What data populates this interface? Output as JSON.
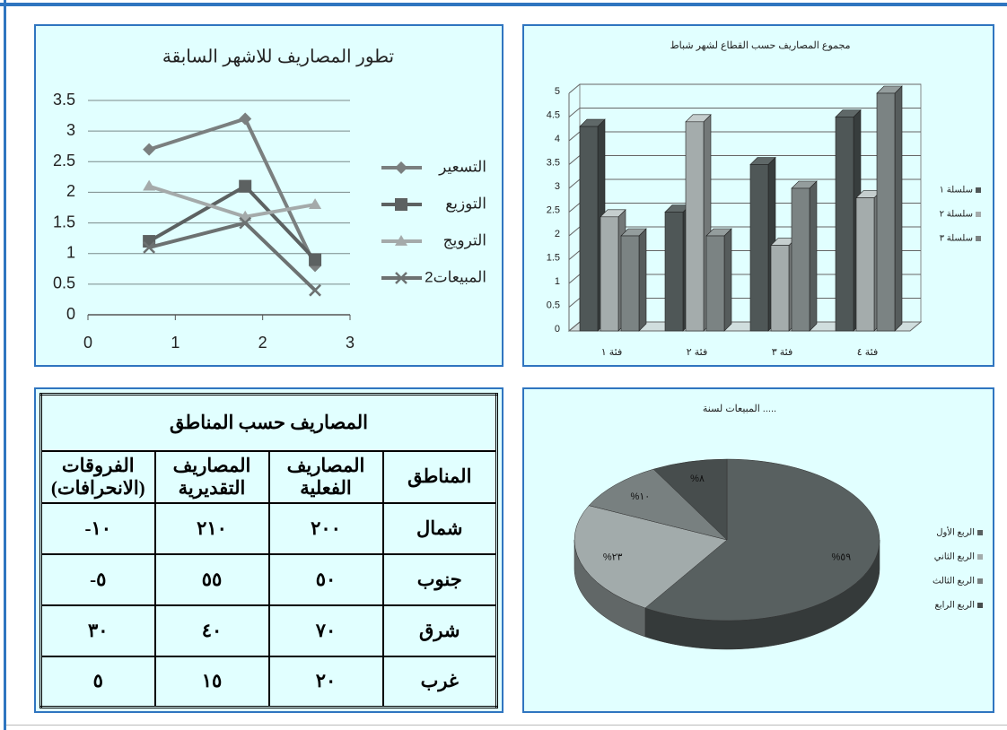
{
  "chart_data": [
    {
      "type": "line",
      "title": "تطور المصاريف للاشهر السابقة",
      "x": [
        0.7,
        1.8,
        2.6
      ],
      "series": [
        {
          "name": "التسعير",
          "color": "#7a7f7f",
          "marker": "diamond",
          "values": [
            2.7,
            3.2,
            0.8
          ]
        },
        {
          "name": "التوزيع",
          "color": "#5c6161",
          "marker": "square",
          "values": [
            1.2,
            2.1,
            0.9
          ]
        },
        {
          "name": "الترويج",
          "color": "#a4aaaa",
          "marker": "triangle",
          "values": [
            2.1,
            1.6,
            1.8
          ]
        },
        {
          "name": "المبيعات2",
          "color": "#6c7171",
          "marker": "x",
          "values": [
            1.1,
            1.5,
            0.4
          ]
        }
      ],
      "xlim": [
        0,
        3
      ],
      "xticks": [
        0,
        1,
        2,
        3
      ],
      "ylim": [
        0,
        3.5
      ],
      "yticks": [
        0,
        0.5,
        1,
        1.5,
        2,
        2.5,
        3,
        3.5
      ],
      "grid": true,
      "legend": "right"
    },
    {
      "type": "bar3d",
      "title": "مجموع المصاريف حسب القطاع لشهر شباط",
      "categories": [
        "فئة ١",
        "فئة ٢",
        "فئة ٣",
        "فئة ٤"
      ],
      "series": [
        {
          "name": "سلسلة ١",
          "color": "#4f5757",
          "values": [
            4.3,
            2.5,
            3.5,
            4.5
          ]
        },
        {
          "name": "سلسلة ٢",
          "color": "#a4acac",
          "values": [
            2.4,
            4.4,
            1.8,
            2.8
          ]
        },
        {
          "name": "سلسلة ٣",
          "color": "#7b8383",
          "values": [
            2,
            2,
            3,
            5
          ]
        }
      ],
      "ylim": [
        0,
        5
      ],
      "yticks": [
        0,
        0.5,
        1,
        1.5,
        2,
        2.5,
        3,
        3.5,
        4,
        4.5,
        5
      ],
      "grid": true,
      "legend": "right"
    },
    {
      "type": "pie3d",
      "title": "المبيعات لسنة .....",
      "categories": [
        "الربع الأول",
        "الربع الثاني",
        "الربع الثالث",
        "الربع الرابع"
      ],
      "values": [
        59,
        23,
        10,
        8
      ],
      "value_labels": [
        "%٥٩",
        "%٢٣",
        "%١٠",
        "%٨"
      ],
      "colors": [
        "#586060",
        "#a2abab",
        "#788080",
        "#474d4d"
      ],
      "legend": "right"
    }
  ],
  "table": {
    "title": "المصاريف حسب المناطق",
    "header": [
      "المناطق",
      "المصاريف الفعلية",
      "المصاريف التقديرية",
      "الفروقات (الانحرافات)"
    ],
    "rows": [
      [
        "شمال",
        "٢٠٠",
        "٢١٠",
        "١٠-"
      ],
      [
        "جنوب",
        "٥٠",
        "٥٥",
        "٥-"
      ],
      [
        "شرق",
        "٧٠",
        "٤٠",
        "٣٠"
      ],
      [
        "غرب",
        "٢٠",
        "١٥",
        "٥"
      ]
    ]
  }
}
